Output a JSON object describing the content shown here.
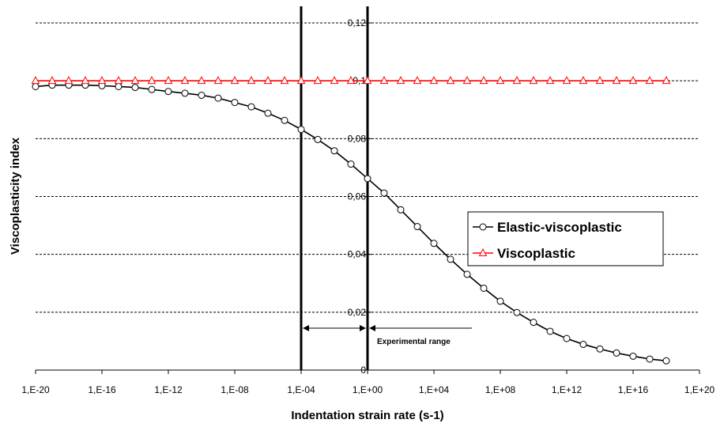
{
  "chart_data": {
    "type": "line",
    "xlabel": "Indentation strain rate (s-1)",
    "ylabel": "Viscoplasticity index",
    "xscale": "log",
    "xlim": [
      -20,
      20
    ],
    "ylim": [
      0,
      0.12
    ],
    "x_ticks": [
      "1,E-20",
      "1,E-16",
      "1,E-12",
      "1,E-08",
      "1,E-04",
      "1,E+00",
      "1,E+04",
      "1,E+08",
      "1,E+12",
      "1,E+16",
      "1,E+20"
    ],
    "y_ticks": [
      "0",
      "0,02",
      "0,04",
      "0,06",
      "0,08",
      "0,1",
      "0,12"
    ],
    "grid": "horizontal dashed",
    "legend_position": "right",
    "series": [
      {
        "name": "Elastic-viscoplastic",
        "color": "#000000",
        "marker": "circle",
        "x": [
          -20,
          -19,
          -18,
          -17,
          -16,
          -15,
          -14,
          -13,
          -12,
          -11,
          -10,
          -9,
          -8,
          -7,
          -6,
          -5,
          -4,
          -3,
          -2,
          -1,
          0,
          1,
          2,
          3,
          4,
          5,
          6,
          7,
          8,
          9,
          10,
          11,
          12,
          13,
          14,
          15,
          16,
          17,
          18
        ],
        "values": [
          0.098,
          0.0985,
          0.0985,
          0.0985,
          0.0983,
          0.098,
          0.0977,
          0.097,
          0.0963,
          0.0957,
          0.095,
          0.094,
          0.0925,
          0.091,
          0.0888,
          0.0863,
          0.0832,
          0.0797,
          0.0758,
          0.0712,
          0.0662,
          0.0612,
          0.0554,
          0.0496,
          0.0438,
          0.0383,
          0.0331,
          0.0283,
          0.0238,
          0.0199,
          0.0165,
          0.0134,
          0.0109,
          0.0089,
          0.0073,
          0.0059,
          0.0048,
          0.0038,
          0.0032
        ]
      },
      {
        "name": "Viscoplastic",
        "color": "#ff0000",
        "marker": "triangle",
        "x": [
          -20,
          -19,
          -18,
          -17,
          -16,
          -15,
          -14,
          -13,
          -12,
          -11,
          -10,
          -9,
          -8,
          -7,
          -6,
          -5,
          -4,
          -3,
          -2,
          -1,
          0,
          1,
          2,
          3,
          4,
          5,
          6,
          7,
          8,
          9,
          10,
          11,
          12,
          13,
          14,
          15,
          16,
          17,
          18
        ],
        "values": [
          0.1,
          0.1,
          0.1,
          0.1,
          0.1,
          0.1,
          0.1,
          0.1,
          0.1,
          0.1,
          0.1,
          0.1,
          0.1,
          0.1,
          0.1,
          0.1,
          0.1,
          0.1,
          0.1,
          0.1,
          0.1,
          0.1,
          0.1,
          0.1,
          0.1,
          0.1,
          0.1,
          0.1,
          0.1,
          0.1,
          0.1,
          0.1,
          0.1,
          0.1,
          0.1,
          0.1,
          0.1,
          0.1,
          0.1
        ]
      }
    ],
    "vertical_lines": [
      -4,
      0
    ],
    "annotation": {
      "text": "Experimental range",
      "x_from": -4,
      "x_to": 0,
      "y": 0.0145
    }
  }
}
